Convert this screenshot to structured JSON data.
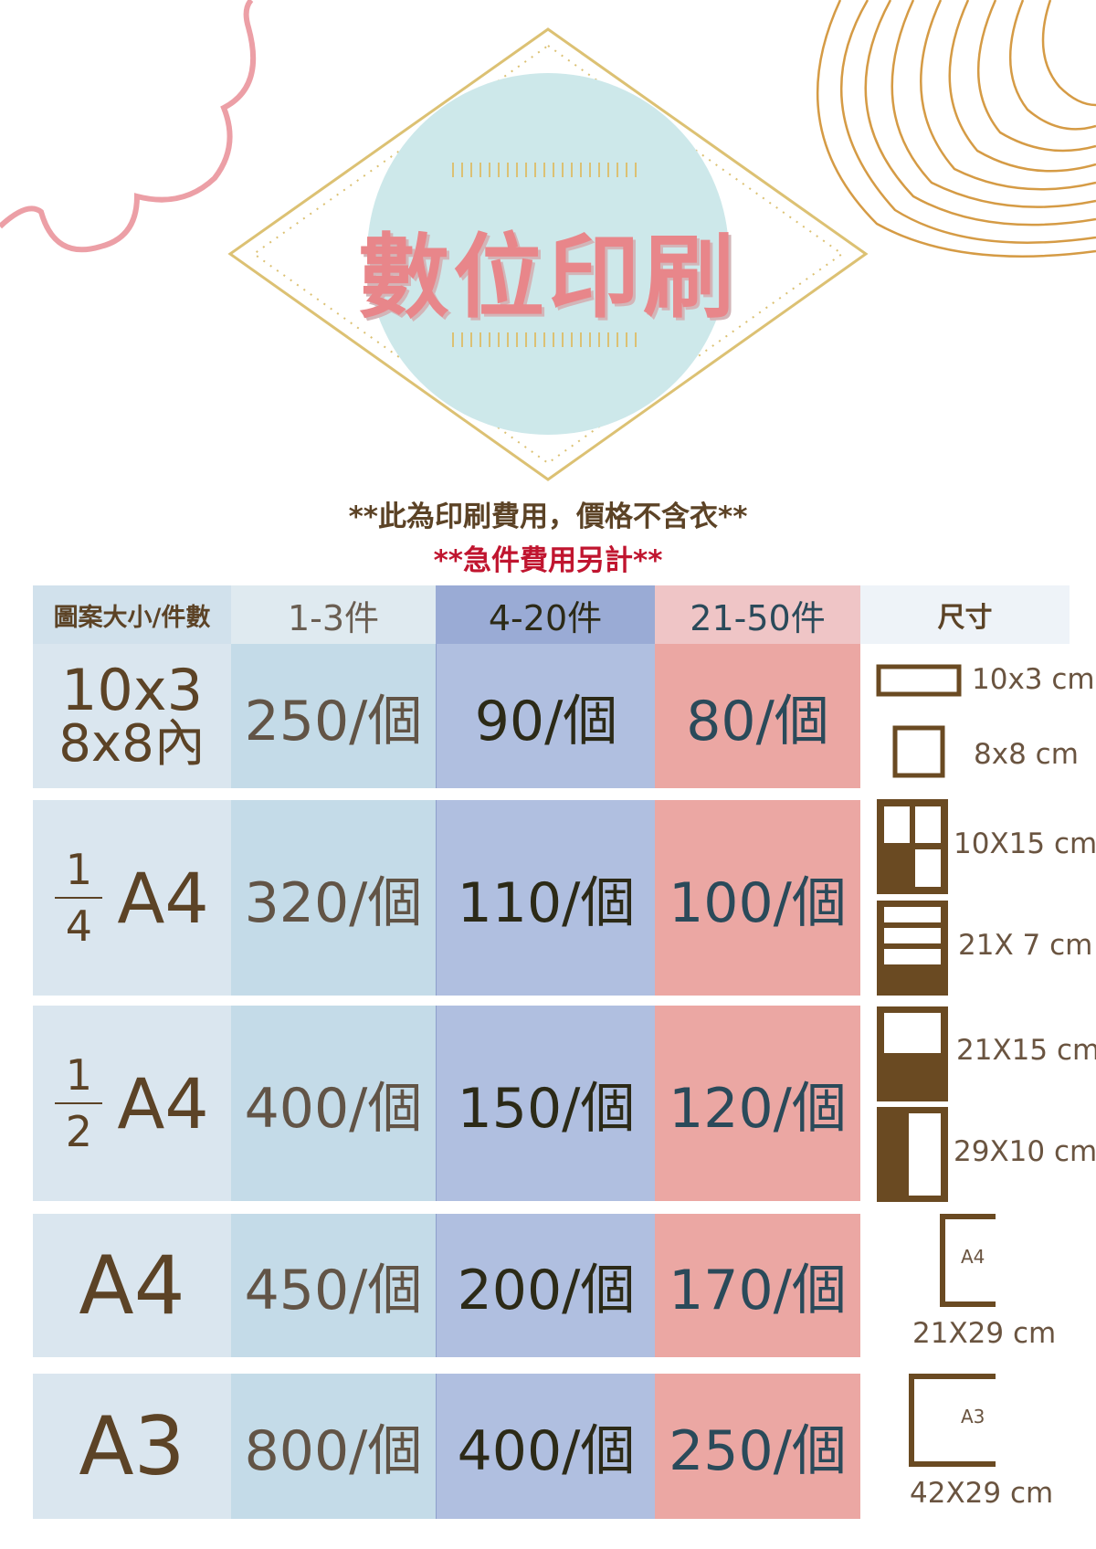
{
  "title": "數位印刷",
  "notes": {
    "line1": "**此為印刷費用，價格不含衣**",
    "line2": "**急件費用另計**"
  },
  "colors": {
    "brown": "#5c4326",
    "title_pink": "#e8868a",
    "urgent_red": "#c0152f",
    "circle": "#cde8ea",
    "gold": "#d9b85a"
  },
  "table": {
    "headers": [
      "圖案大小/件數",
      "1-3件",
      "4-20件",
      "21-50件",
      "尺寸"
    ],
    "rows": [
      {
        "label_line1": "10x3",
        "label_line2": "8x8內",
        "prices": [
          "250/個",
          "90/個",
          "80/個"
        ]
      },
      {
        "fraction_num": "1",
        "fraction_den": "4",
        "label": "A4",
        "prices": [
          "320/個",
          "110/個",
          "100/個"
        ]
      },
      {
        "fraction_num": "1",
        "fraction_den": "2",
        "label": "A4",
        "prices": [
          "400/個",
          "150/個",
          "120/個"
        ]
      },
      {
        "label": "A4",
        "prices": [
          "450/個",
          "200/個",
          "170/個"
        ]
      },
      {
        "label": "A3",
        "prices": [
          "800/個",
          "400/個",
          "250/個"
        ]
      }
    ]
  },
  "sizes": {
    "s1": "10x3 cm",
    "s2": "8x8 cm",
    "s3": "10X15 cm",
    "s4": "21X 7 cm",
    "s5": "21X15 cm",
    "s6": "29X10 cm",
    "a4_icon": "A4",
    "s7": "21X29 cm",
    "a3_icon": "A3",
    "s8": "42X29 cm"
  }
}
